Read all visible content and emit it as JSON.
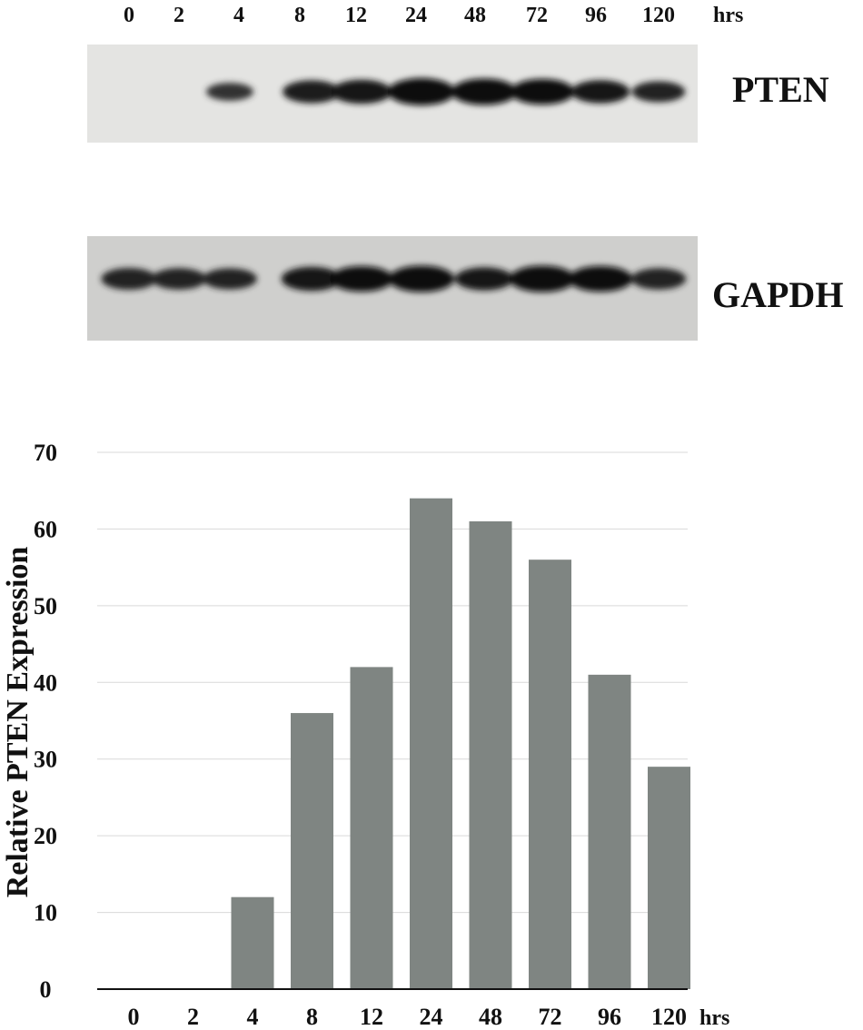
{
  "blot": {
    "time_labels": [
      "0",
      "2",
      "4",
      "8",
      "12",
      "24",
      "48",
      "72",
      "96",
      "120"
    ],
    "time_unit": "hrs",
    "bands": [
      {
        "label": "PTEN",
        "intensity": [
          0,
          0,
          0.35,
          0.7,
          0.78,
          1.0,
          0.95,
          0.9,
          0.72,
          0.55
        ]
      },
      {
        "label": "GAPDH",
        "intensity": [
          0.62,
          0.6,
          0.58,
          0.78,
          0.88,
          0.95,
          0.72,
          0.95,
          0.9,
          0.6
        ]
      }
    ]
  },
  "chart_data": {
    "type": "bar",
    "categories": [
      "0",
      "2",
      "4",
      "8",
      "12",
      "24",
      "48",
      "72",
      "96",
      "120"
    ],
    "values": [
      0,
      0,
      12,
      36,
      42,
      64,
      61,
      56,
      41,
      29
    ],
    "x_unit_label": "hrs",
    "ylabel": "Relative PTEN Expression",
    "ylim": [
      0,
      70
    ],
    "yticks": [
      "0",
      "10",
      "20",
      "30",
      "40",
      "50",
      "60",
      "70"
    ],
    "grid": true,
    "bar_color": "#7f8582"
  }
}
